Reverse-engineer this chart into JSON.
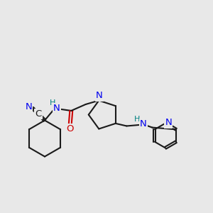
{
  "bg_color": "#e8e8e8",
  "bond_color": "#1a1a1a",
  "N_color": "#0000ee",
  "O_color": "#cc0000",
  "C_color": "#1a1a1a",
  "H_color": "#008080",
  "label_fontsize": 9.5,
  "small_fontsize": 8.0,
  "line_width": 1.5,
  "figsize": [
    3.0,
    3.0
  ],
  "dpi": 100,
  "xlim": [
    0,
    10
  ],
  "ylim": [
    0,
    10
  ]
}
